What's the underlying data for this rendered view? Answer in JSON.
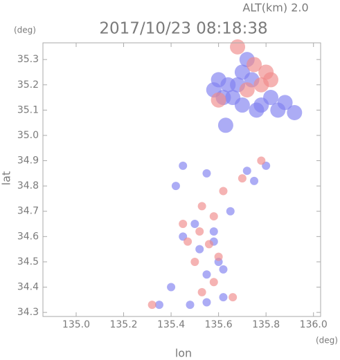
{
  "chart_data": {
    "type": "scatter",
    "annotation": "ALT(km) 2.0",
    "title": "2017/10/23 08:18:38",
    "y_unit": "(deg)",
    "x_unit": "(deg)",
    "ylabel": "lat",
    "xlabel": "lon",
    "xlim": [
      134.86,
      136.03
    ],
    "ylim": [
      34.284,
      35.366
    ],
    "xticks": [
      {
        "value": 135.0,
        "label": "135.0"
      },
      135.2,
      135.4,
      135.6,
      135.8,
      {
        "value": 136.0,
        "label": "136.0"
      }
    ],
    "yticks": [
      34.3,
      34.4,
      34.5,
      34.6,
      34.7,
      34.8,
      34.9,
      {
        "value": 35.0,
        "label": "35.0"
      },
      35.1,
      35.2,
      35.3
    ],
    "series": [
      {
        "color": "#7f7ff0",
        "x": [
          135.7,
          135.68,
          135.66,
          135.72,
          135.74,
          135.62,
          135.64,
          135.78,
          135.85,
          135.88,
          135.92,
          135.82,
          135.7,
          135.6,
          135.58,
          135.63,
          135.76,
          135.45,
          135.55,
          135.72,
          135.8,
          135.42,
          135.5,
          135.45,
          135.58,
          135.52,
          135.6,
          135.55,
          135.62,
          135.48,
          135.55,
          135.35,
          135.62,
          135.4,
          135.65,
          135.75,
          135.58
        ],
        "y": [
          35.25,
          35.2,
          35.15,
          35.3,
          35.22,
          35.15,
          35.2,
          35.12,
          35.1,
          35.13,
          35.09,
          35.15,
          35.12,
          35.22,
          35.18,
          35.04,
          35.1,
          34.88,
          34.85,
          34.86,
          34.88,
          34.8,
          34.65,
          34.6,
          34.62,
          34.55,
          34.5,
          34.45,
          34.47,
          34.33,
          34.34,
          34.33,
          34.36,
          34.4,
          34.7,
          34.82,
          34.58
        ]
      },
      {
        "color": "#f08a8a",
        "x": [
          135.68,
          135.78,
          135.8,
          135.75,
          135.72,
          135.82,
          135.6,
          135.78,
          135.7,
          135.62,
          135.52,
          135.47,
          135.56,
          135.58,
          135.5,
          135.58,
          135.53,
          135.32,
          135.66,
          135.53,
          135.45,
          135.6
        ],
        "y": [
          35.35,
          35.2,
          35.25,
          35.28,
          35.18,
          35.22,
          35.14,
          34.9,
          34.83,
          34.78,
          34.62,
          34.58,
          34.57,
          34.68,
          34.5,
          34.42,
          34.38,
          34.33,
          34.36,
          34.72,
          34.65,
          34.52
        ]
      }
    ]
  }
}
